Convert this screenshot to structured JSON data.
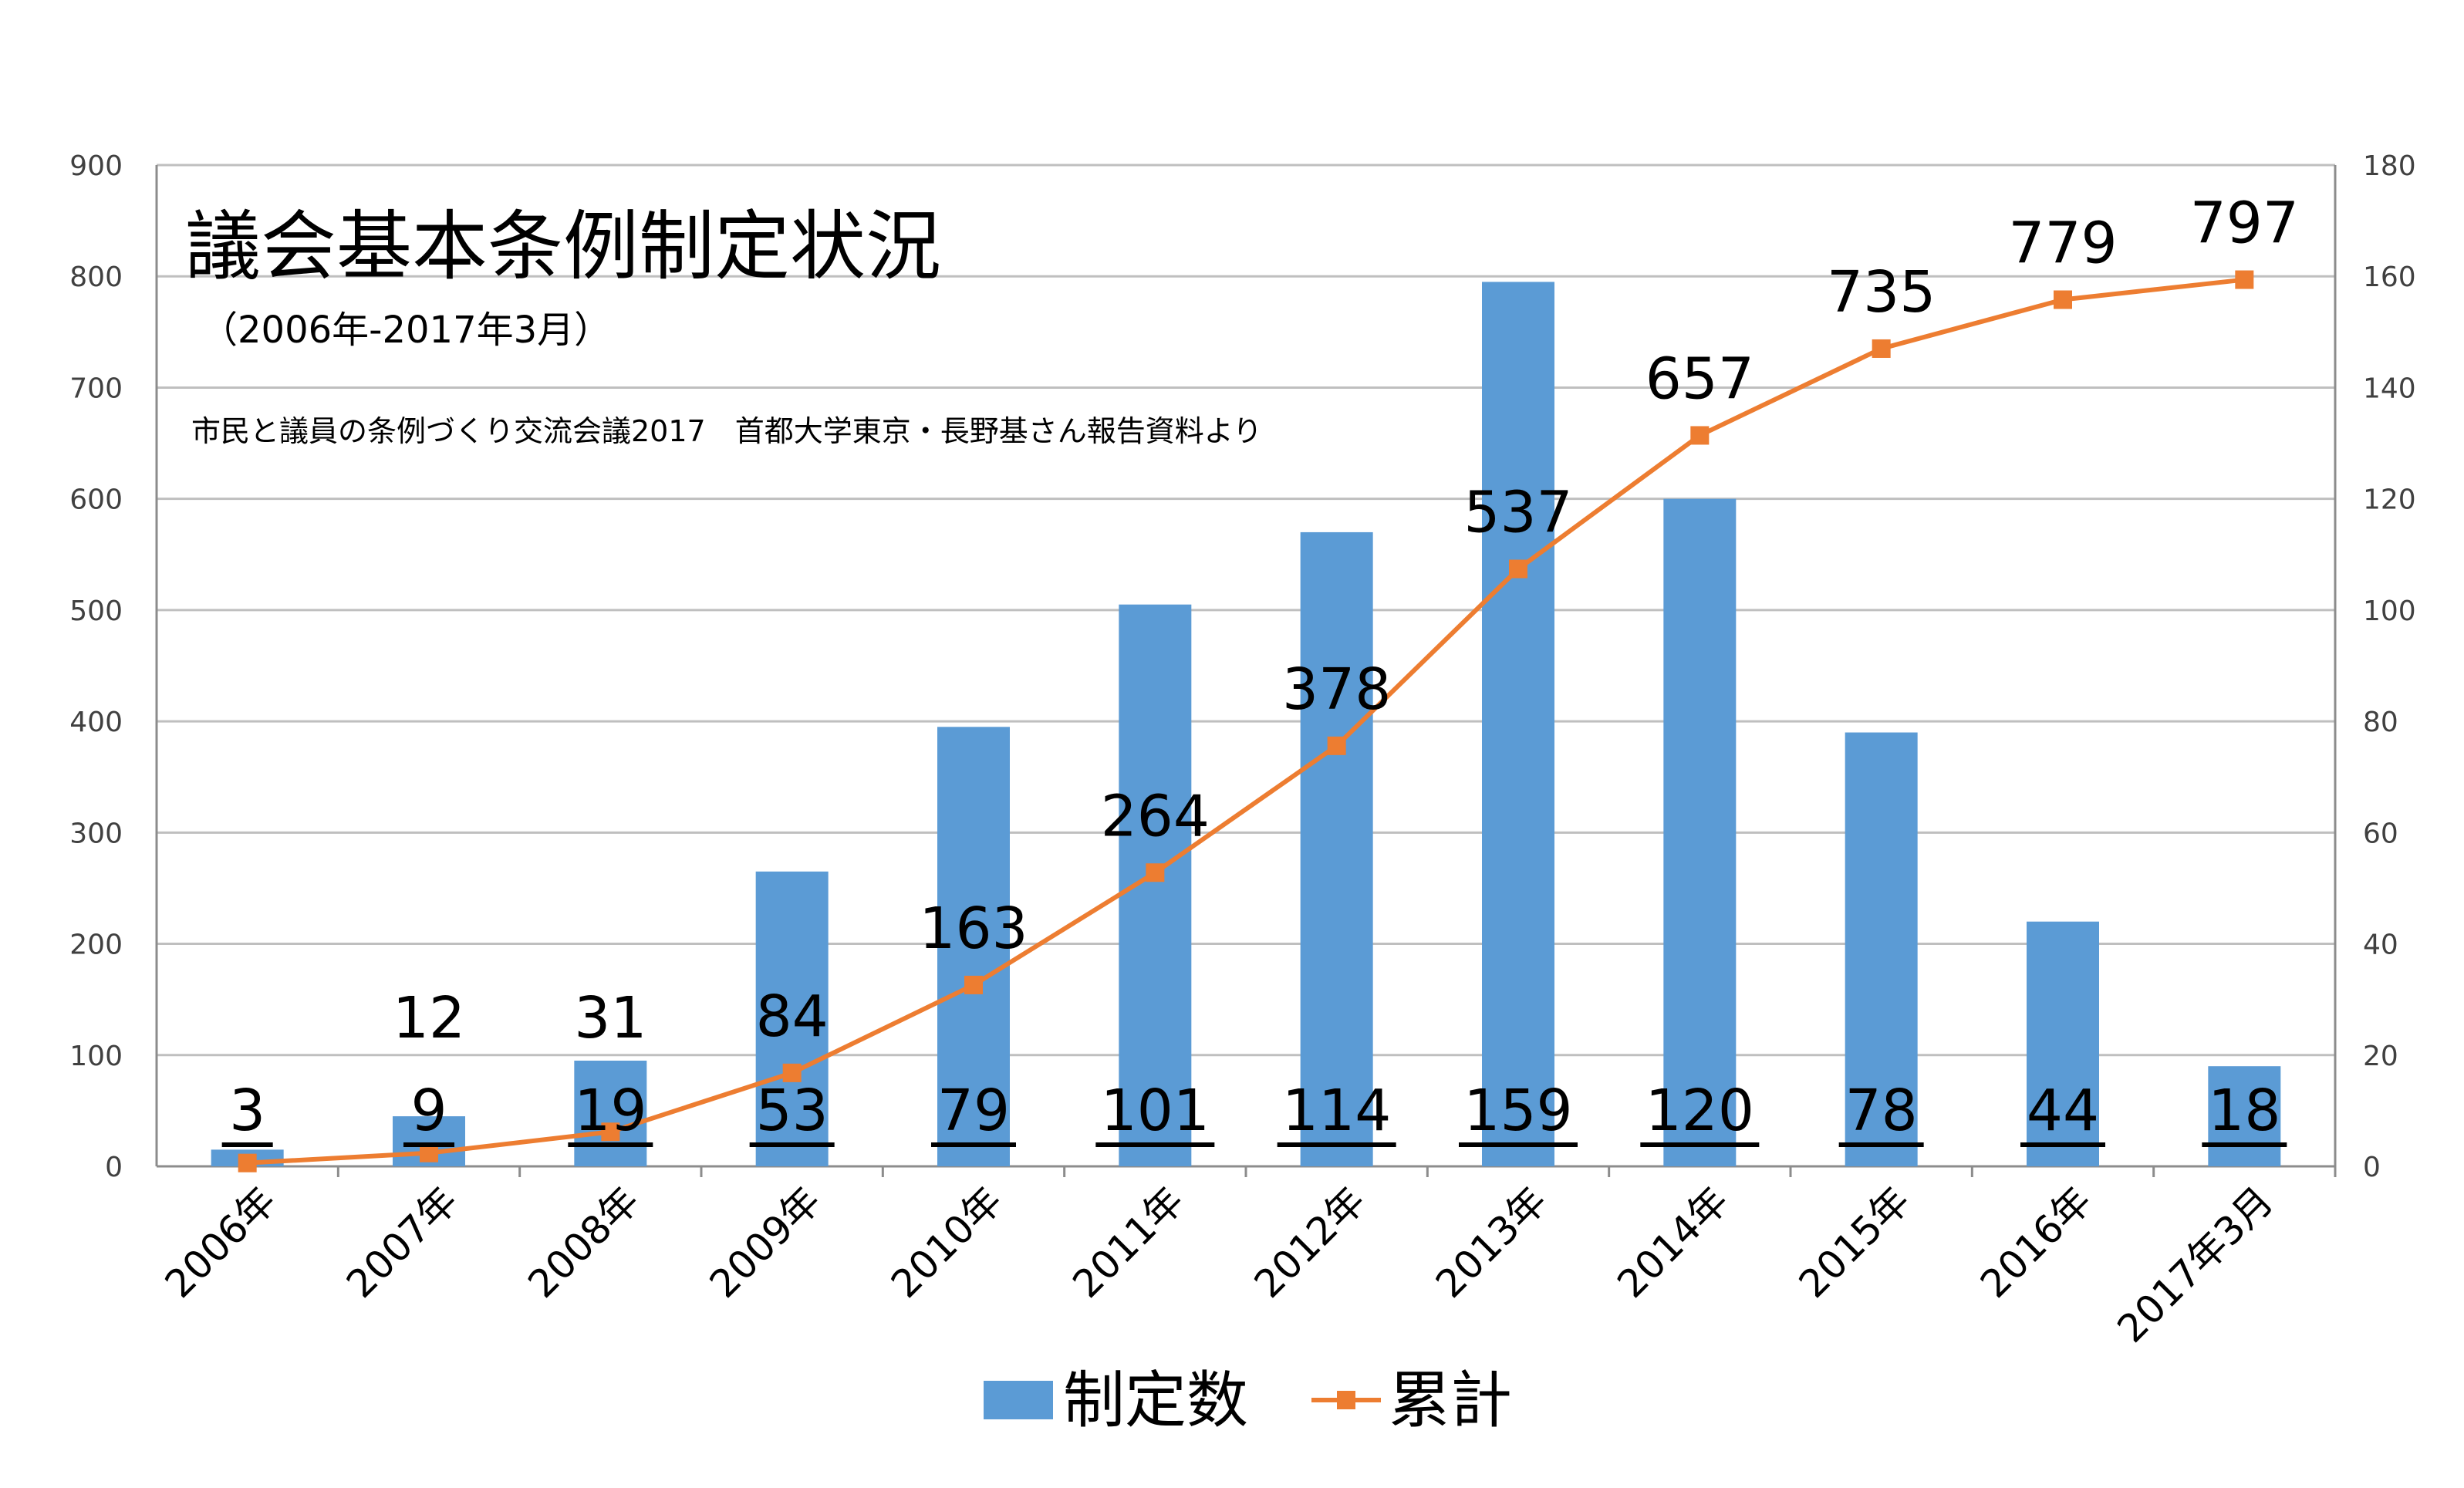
{
  "chart_data": {
    "type": "bar",
    "title": "議会基本条例制定状況",
    "subtitle": "（2006年-2017年3月）",
    "source_note": "市民と議員の条例づくり交流会議2017　首都大学東京・長野基さん報告資料より",
    "categories": [
      "2006年",
      "2007年",
      "2008年",
      "2009年",
      "2010年",
      "2011年",
      "2012年",
      "2013年",
      "2014年",
      "2015年",
      "2016年",
      "2017年3月"
    ],
    "series": [
      {
        "name": "制定数",
        "type": "bar",
        "axis": "right",
        "color": "#5b9bd5",
        "values": [
          3,
          9,
          19,
          53,
          79,
          101,
          114,
          159,
          120,
          78,
          44,
          18
        ]
      },
      {
        "name": "累計",
        "type": "line",
        "axis": "left",
        "color": "#ed7d31",
        "values": [
          3,
          12,
          31,
          84,
          163,
          264,
          378,
          537,
          657,
          735,
          779,
          797
        ]
      }
    ],
    "ylim_left": [
      0,
      900
    ],
    "yticks_left": [
      "0",
      "100",
      "200",
      "300",
      "400",
      "500",
      "600",
      "700",
      "800",
      "900"
    ],
    "ylim_right": [
      0,
      180
    ],
    "yticks_right": [
      "0",
      "20",
      "40",
      "60",
      "80",
      "100",
      "120",
      "140",
      "160",
      "180"
    ],
    "grid": true,
    "legend_position": "bottom-center"
  }
}
